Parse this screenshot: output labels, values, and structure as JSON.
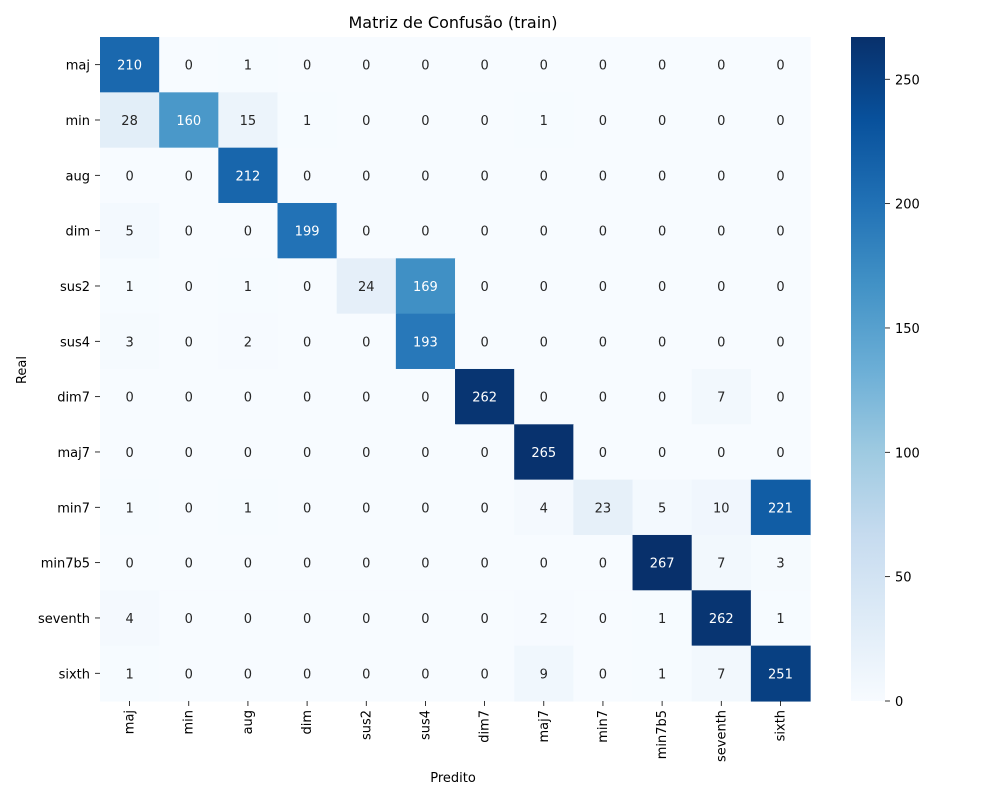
{
  "chart_data": {
    "type": "heatmap",
    "title": "Matriz de Confusão (train)",
    "xlabel": "Predito",
    "ylabel": "Real",
    "x_categories": [
      "maj",
      "min",
      "aug",
      "dim",
      "sus2",
      "sus4",
      "dim7",
      "maj7",
      "min7",
      "min7b5",
      "seventh",
      "sixth"
    ],
    "y_categories": [
      "maj",
      "min",
      "aug",
      "dim",
      "sus2",
      "sus4",
      "dim7",
      "maj7",
      "min7",
      "min7b5",
      "seventh",
      "sixth"
    ],
    "values": [
      [
        210,
        0,
        1,
        0,
        0,
        0,
        0,
        0,
        0,
        0,
        0,
        0
      ],
      [
        28,
        160,
        15,
        1,
        0,
        0,
        0,
        1,
        0,
        0,
        0,
        0
      ],
      [
        0,
        0,
        212,
        0,
        0,
        0,
        0,
        0,
        0,
        0,
        0,
        0
      ],
      [
        5,
        0,
        0,
        199,
        0,
        0,
        0,
        0,
        0,
        0,
        0,
        0
      ],
      [
        1,
        0,
        1,
        0,
        24,
        169,
        0,
        0,
        0,
        0,
        0,
        0
      ],
      [
        3,
        0,
        2,
        0,
        0,
        193,
        0,
        0,
        0,
        0,
        0,
        0
      ],
      [
        0,
        0,
        0,
        0,
        0,
        0,
        262,
        0,
        0,
        0,
        7,
        0
      ],
      [
        0,
        0,
        0,
        0,
        0,
        0,
        0,
        265,
        0,
        0,
        0,
        0
      ],
      [
        1,
        0,
        1,
        0,
        0,
        0,
        0,
        4,
        23,
        5,
        10,
        221
      ],
      [
        0,
        0,
        0,
        0,
        0,
        0,
        0,
        0,
        0,
        267,
        7,
        3
      ],
      [
        4,
        0,
        0,
        0,
        0,
        0,
        0,
        2,
        0,
        1,
        262,
        1
      ],
      [
        1,
        0,
        0,
        0,
        0,
        0,
        0,
        9,
        0,
        1,
        7,
        251
      ]
    ],
    "colormap": "Blues",
    "vmin": 0,
    "vmax": 267,
    "colorbar_ticks": [
      0,
      50,
      100,
      150,
      200,
      250
    ],
    "grid": false,
    "colorbar": "right"
  }
}
